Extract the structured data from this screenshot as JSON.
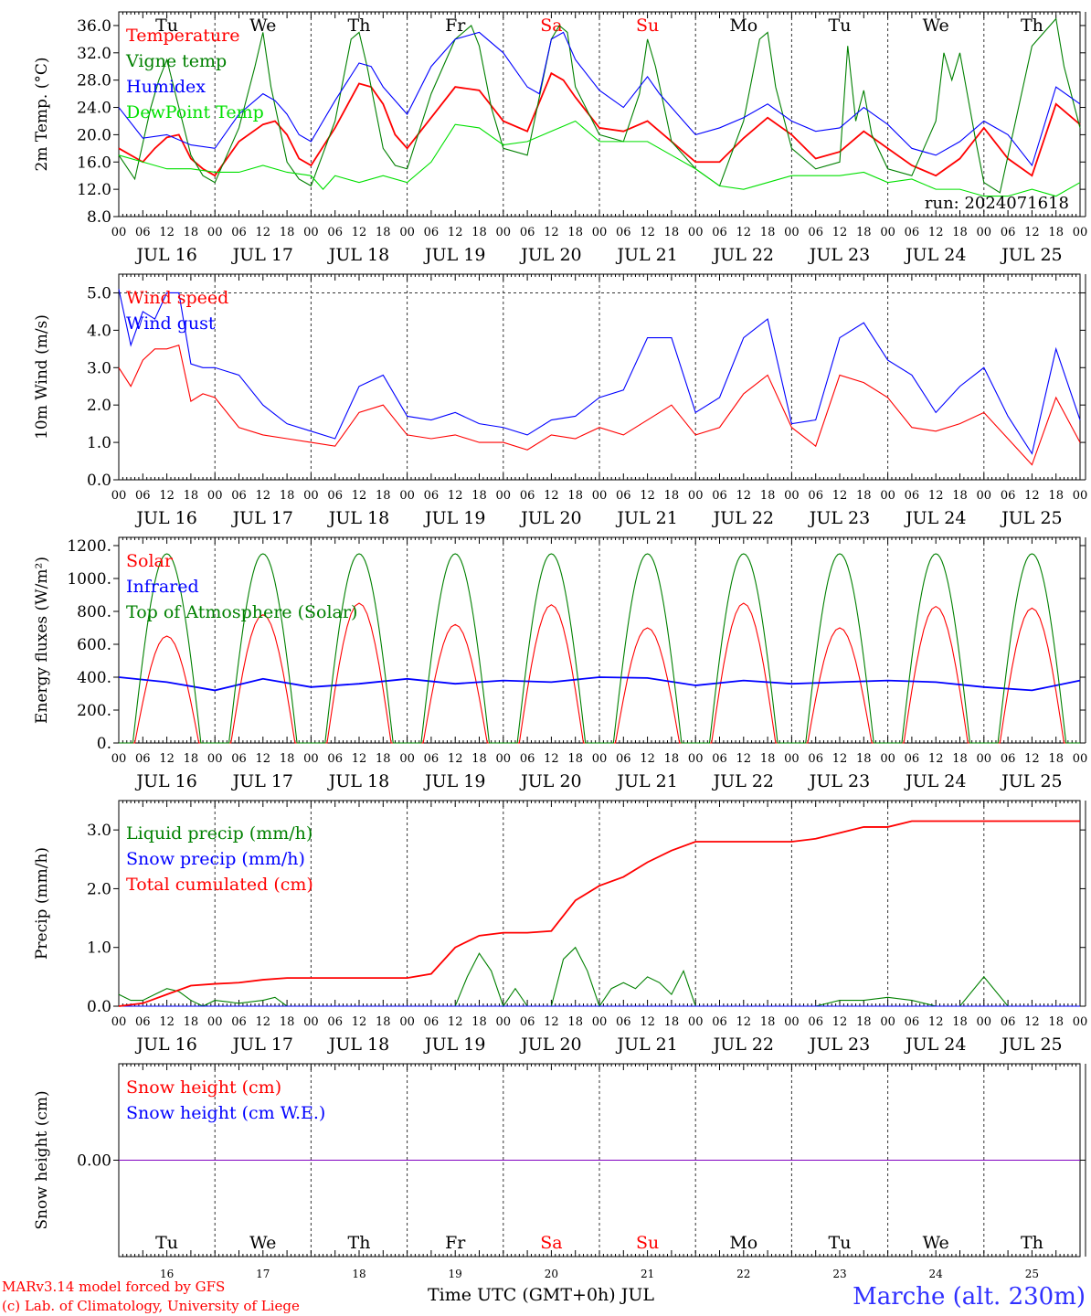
{
  "station_title": "Marche (alt. 230m)",
  "footer": {
    "model": "MARv3.14 model forced by GFS",
    "credit": "(c) Lab. of Climatology, University of Liege",
    "xlabel": "Time UTC (GMT+0h) JUL"
  },
  "colors": {
    "red": "#ff0000",
    "green": "#008000",
    "blue": "#0000ff",
    "lightgreen": "#00e000",
    "purple": "#8000c0",
    "grid": "#555555"
  },
  "days": {
    "weekday_labels": [
      "Tu",
      "We",
      "Th",
      "Fr",
      "Sa",
      "Su",
      "Mo",
      "Tu",
      "We",
      "Th"
    ],
    "weekend_flags": [
      false,
      false,
      false,
      false,
      true,
      true,
      false,
      false,
      false,
      false
    ],
    "date_labels": [
      "JUL 16",
      "JUL 17",
      "JUL 18",
      "JUL 19",
      "JUL 20",
      "JUL 21",
      "JUL 22",
      "JUL 23",
      "JUL 24",
      "JUL 25"
    ],
    "day_numbers": [
      "16",
      "17",
      "18",
      "19",
      "20",
      "21",
      "22",
      "23",
      "24",
      "25"
    ],
    "hour_ticks": [
      "00",
      "06",
      "12",
      "18"
    ],
    "last_tick": "00"
  },
  "chart_data": [
    {
      "type": "line",
      "ylabel": "2m Temp. (°C)",
      "ylim": [
        8,
        38
      ],
      "yticks": [
        "8.0",
        "12.0",
        "16.0",
        "20.0",
        "24.0",
        "28.0",
        "32.0",
        "36.0"
      ],
      "annotation": "run: 2024071618",
      "x_unit": "hours since JUL 16 00 UTC",
      "series": [
        {
          "name": "Temperature",
          "color": "red",
          "x": [
            0,
            6,
            9,
            12,
            15,
            18,
            21,
            24,
            30,
            36,
            39,
            42,
            45,
            48,
            54,
            60,
            63,
            66,
            69,
            72,
            78,
            84,
            90,
            96,
            102,
            108,
            111,
            114,
            120,
            126,
            132,
            138,
            144,
            150,
            156,
            162,
            168,
            174,
            180,
            186,
            192,
            198,
            204,
            210,
            216,
            222,
            228,
            234,
            240
          ],
          "y": [
            18,
            16,
            18,
            19.6,
            20,
            16.5,
            15,
            14,
            19,
            21.5,
            22,
            20,
            16.5,
            15.5,
            21,
            27.5,
            27,
            24.5,
            20,
            18,
            22.5,
            27,
            26.5,
            22,
            20.5,
            29,
            28,
            25.5,
            21,
            20.5,
            22,
            19,
            16,
            16,
            19.5,
            22.5,
            20,
            16.5,
            17.5,
            20.5,
            18,
            15.5,
            14,
            16.5,
            21,
            16.5,
            14,
            24.5,
            21.5
          ]
        },
        {
          "name": "Vigne temp",
          "color": "green",
          "x": [
            0,
            4,
            8,
            10,
            12,
            15,
            18,
            21,
            24,
            30,
            34,
            36,
            38,
            42,
            45,
            48,
            54,
            58,
            60,
            62,
            66,
            69,
            72,
            78,
            84,
            88,
            90,
            93,
            96,
            102,
            108,
            110,
            112,
            114,
            120,
            126,
            130,
            132,
            134,
            138,
            144,
            150,
            156,
            160,
            162,
            164,
            168,
            174,
            180,
            182,
            184,
            186,
            188,
            192,
            198,
            204,
            206,
            208,
            210,
            214,
            216,
            220,
            228,
            234,
            236,
            240
          ],
          "y": [
            17,
            13.5,
            24,
            28,
            31,
            24,
            17,
            14,
            13,
            21,
            30,
            35,
            27,
            16,
            13.5,
            12.5,
            22,
            34,
            35,
            30,
            18,
            15.5,
            15,
            26,
            34,
            36,
            33,
            24,
            18,
            17,
            34,
            36,
            35,
            27,
            20,
            19,
            26,
            34,
            30,
            19,
            15,
            12.5,
            22,
            34,
            35,
            27,
            18,
            15,
            16,
            33,
            22,
            26.5,
            20,
            15,
            14,
            22,
            32,
            28,
            32,
            19,
            13,
            11.5,
            33,
            37,
            30,
            21
          ]
        },
        {
          "name": "Humidex",
          "color": "blue",
          "x": [
            0,
            6,
            12,
            18,
            24,
            30,
            36,
            39,
            42,
            45,
            48,
            54,
            60,
            63,
            66,
            72,
            78,
            84,
            90,
            96,
            102,
            105,
            108,
            111,
            114,
            120,
            126,
            132,
            135,
            138,
            144,
            150,
            156,
            162,
            168,
            174,
            180,
            186,
            192,
            198,
            204,
            210,
            216,
            222,
            228,
            234,
            240
          ],
          "y": [
            24,
            19.5,
            20,
            18.5,
            18,
            23,
            26,
            25,
            23,
            20,
            19,
            25,
            30.5,
            30,
            27,
            23,
            30,
            34,
            35,
            32,
            27,
            26,
            34,
            35,
            31,
            26.5,
            24,
            28.5,
            26,
            24,
            20,
            21,
            22.5,
            24.5,
            22,
            20.5,
            21,
            24,
            21.5,
            18,
            17,
            19,
            22,
            20,
            15.5,
            27,
            24.5
          ]
        },
        {
          "name": "DewPoint Temp",
          "color": "lightgreen",
          "x": [
            0,
            6,
            12,
            18,
            24,
            30,
            36,
            42,
            48,
            51,
            54,
            60,
            66,
            72,
            78,
            84,
            90,
            96,
            102,
            108,
            114,
            120,
            126,
            132,
            138,
            144,
            150,
            156,
            162,
            168,
            174,
            180,
            186,
            192,
            198,
            204,
            210,
            216,
            222,
            228,
            234,
            240
          ],
          "y": [
            17,
            16,
            15,
            15,
            14.5,
            14.5,
            15.5,
            14.5,
            14,
            12,
            14,
            13,
            14,
            13,
            16,
            21.5,
            21,
            18.5,
            19,
            20.5,
            22,
            19,
            19,
            19,
            17,
            15,
            12.5,
            12,
            13,
            14,
            14,
            14,
            14.5,
            13,
            13.5,
            12,
            12,
            11,
            11,
            12,
            11,
            13
          ]
        }
      ]
    },
    {
      "type": "line",
      "ylabel": "10m Wind (m/s)",
      "ylim": [
        0,
        5.5
      ],
      "yticks": [
        "0.0",
        "1.0",
        "2.0",
        "3.0",
        "4.0",
        "5.0"
      ],
      "x_unit": "hours since JUL 16 00 UTC",
      "series": [
        {
          "name": "Wind speed",
          "color": "red",
          "x": [
            0,
            3,
            6,
            9,
            12,
            15,
            18,
            21,
            24,
            30,
            36,
            42,
            48,
            54,
            60,
            66,
            72,
            78,
            84,
            90,
            96,
            102,
            108,
            114,
            120,
            126,
            132,
            138,
            144,
            150,
            156,
            162,
            168,
            174,
            180,
            186,
            192,
            198,
            204,
            210,
            216,
            222,
            228,
            234,
            240
          ],
          "y": [
            3,
            2.5,
            3.2,
            3.5,
            3.5,
            3.6,
            2.1,
            2.3,
            2.2,
            1.4,
            1.2,
            1.1,
            1,
            0.9,
            1.8,
            2,
            1.2,
            1.1,
            1.2,
            1,
            1,
            0.8,
            1.2,
            1.1,
            1.4,
            1.2,
            1.6,
            2,
            1.2,
            1.4,
            2.3,
            2.8,
            1.4,
            0.9,
            2.8,
            2.6,
            2.2,
            1.4,
            1.3,
            1.5,
            1.8,
            1.1,
            0.4,
            2.2,
            1
          ]
        },
        {
          "name": "Wind gust",
          "color": "blue",
          "x": [
            0,
            3,
            6,
            9,
            12,
            15,
            18,
            21,
            24,
            30,
            36,
            42,
            48,
            54,
            60,
            66,
            72,
            78,
            84,
            90,
            96,
            102,
            108,
            114,
            120,
            126,
            132,
            138,
            144,
            150,
            156,
            162,
            168,
            174,
            180,
            186,
            192,
            198,
            204,
            210,
            216,
            222,
            228,
            234,
            240
          ],
          "y": [
            5.1,
            3.6,
            4.5,
            4.3,
            5,
            5,
            3.1,
            3,
            3,
            2.8,
            2,
            1.5,
            1.3,
            1.1,
            2.5,
            2.8,
            1.7,
            1.6,
            1.8,
            1.5,
            1.4,
            1.2,
            1.6,
            1.7,
            2.2,
            2.4,
            3.8,
            3.8,
            1.8,
            2.2,
            3.8,
            4.3,
            1.5,
            1.6,
            3.8,
            4.2,
            3.2,
            2.8,
            1.8,
            2.5,
            3,
            1.7,
            0.7,
            3.5,
            1.6
          ]
        }
      ]
    },
    {
      "type": "line",
      "ylabel": "Energy fluxes (W/m²)",
      "ylim": [
        0,
        1250
      ],
      "yticks": [
        "0.",
        "200.",
        "400.",
        "600.",
        "800.",
        "1000.",
        "1200."
      ],
      "x_unit": "hours since JUL 16 00 UTC",
      "series": [
        {
          "name": "Solar",
          "color": "red",
          "day_peaks": [
            650,
            780,
            850,
            720,
            840,
            700,
            850,
            700,
            830,
            820
          ],
          "day_start": 4,
          "day_end": 20
        },
        {
          "name": "Infrared",
          "color": "blue",
          "x": [
            0,
            12,
            24,
            36,
            48,
            60,
            72,
            84,
            96,
            108,
            120,
            132,
            144,
            156,
            168,
            180,
            192,
            204,
            216,
            228,
            240
          ],
          "y": [
            400,
            370,
            320,
            390,
            340,
            360,
            390,
            360,
            380,
            370,
            400,
            395,
            350,
            380,
            360,
            370,
            380,
            370,
            340,
            320,
            380
          ]
        },
        {
          "name": "Top of Atmosphere (Solar)",
          "color": "green",
          "peak": 1150,
          "day_start": 3.5,
          "day_end": 20.5
        }
      ]
    },
    {
      "type": "line",
      "ylabel": "Precip (mm/h)",
      "ylim": [
        0,
        3.5
      ],
      "yticks": [
        "0.0",
        "1.0",
        "2.0",
        "3.0"
      ],
      "x_unit": "hours since JUL 16 00 UTC",
      "series": [
        {
          "name": "Liquid precip (mm/h)",
          "color": "green",
          "x": [
            0,
            3,
            6,
            9,
            12,
            15,
            18,
            21,
            24,
            30,
            36,
            39,
            42,
            48,
            54,
            60,
            66,
            72,
            78,
            84,
            87,
            90,
            93,
            96,
            99,
            102,
            108,
            111,
            114,
            117,
            120,
            123,
            126,
            129,
            132,
            135,
            138,
            141,
            144,
            150,
            156,
            162,
            168,
            174,
            180,
            186,
            192,
            198,
            204,
            207,
            210,
            216,
            222,
            228,
            234,
            240
          ],
          "y": [
            0.2,
            0.1,
            0.1,
            0.2,
            0.3,
            0.25,
            0.1,
            0,
            0.1,
            0.05,
            0.1,
            0.15,
            0,
            0,
            0,
            0,
            0,
            0,
            0,
            0,
            0.5,
            0.9,
            0.6,
            0,
            0.3,
            0,
            0,
            0.8,
            1,
            0.6,
            0,
            0.3,
            0.4,
            0.3,
            0.5,
            0.4,
            0.2,
            0.6,
            0,
            0,
            0,
            0,
            0,
            0,
            0.1,
            0.1,
            0.15,
            0.1,
            0,
            0,
            0,
            0.5,
            0,
            0,
            0,
            0
          ]
        },
        {
          "name": "Snow precip (mm/h)",
          "color": "blue",
          "x": [
            0,
            240
          ],
          "y": [
            0,
            0
          ]
        },
        {
          "name": "Total cumulated (cm)",
          "color": "red",
          "x": [
            0,
            6,
            12,
            18,
            24,
            30,
            36,
            42,
            48,
            54,
            60,
            66,
            72,
            78,
            84,
            90,
            96,
            102,
            108,
            114,
            120,
            126,
            132,
            138,
            144,
            150,
            156,
            162,
            168,
            174,
            180,
            186,
            192,
            198,
            204,
            210,
            216,
            222,
            228,
            234,
            240
          ],
          "y": [
            0,
            0.05,
            0.2,
            0.35,
            0.38,
            0.4,
            0.45,
            0.48,
            0.48,
            0.48,
            0.48,
            0.48,
            0.48,
            0.55,
            1,
            1.2,
            1.25,
            1.25,
            1.28,
            1.8,
            2.05,
            2.2,
            2.45,
            2.65,
            2.8,
            2.8,
            2.8,
            2.8,
            2.8,
            2.85,
            2.95,
            3.05,
            3.05,
            3.15,
            3.15,
            3.15,
            3.15,
            3.15,
            3.15,
            3.15,
            3.15
          ]
        }
      ]
    },
    {
      "type": "line",
      "ylabel": "Snow height (cm)",
      "ylim": [
        -1,
        1
      ],
      "yticks": [
        "0.00"
      ],
      "x_unit": "hours since JUL 16 00 UTC",
      "series": [
        {
          "name": "Snow height (cm)",
          "color": "red",
          "x": [
            0,
            240
          ],
          "y": [
            0,
            0
          ]
        },
        {
          "name": "Snow height (cm W.E.)",
          "color": "blue",
          "x": [
            0,
            240
          ],
          "y": [
            0,
            0
          ]
        }
      ]
    }
  ]
}
